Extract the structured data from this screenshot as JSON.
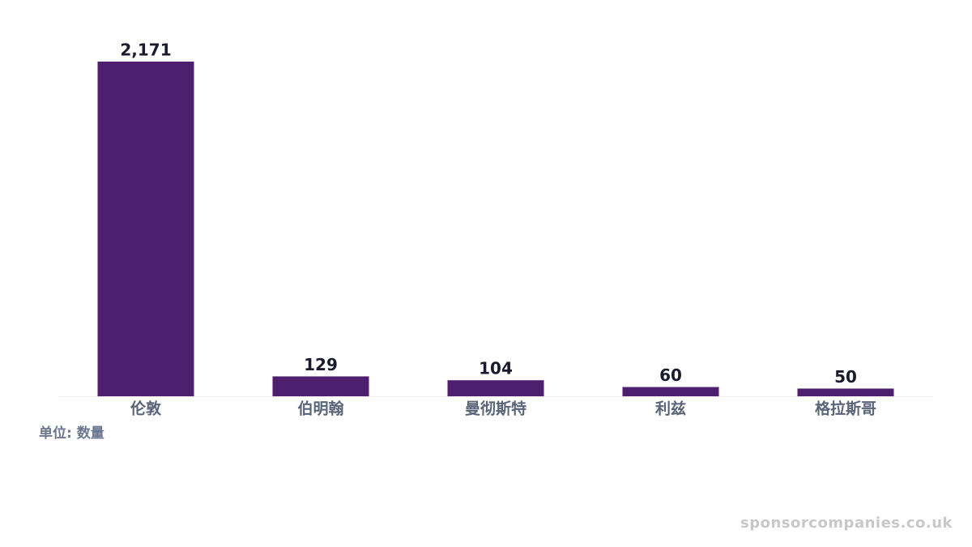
{
  "chart_data": {
    "type": "bar",
    "categories": [
      "伦敦",
      "伯明翰",
      "曼彻斯特",
      "利兹",
      "格拉斯哥"
    ],
    "values": [
      2171,
      129,
      104,
      60,
      50
    ],
    "value_labels": [
      "2,171",
      "129",
      "104",
      "60",
      "50"
    ],
    "color": "#4f1f6f",
    "footnote": "单位: 数量",
    "watermark": "sponsorcompanies.co.uk"
  }
}
